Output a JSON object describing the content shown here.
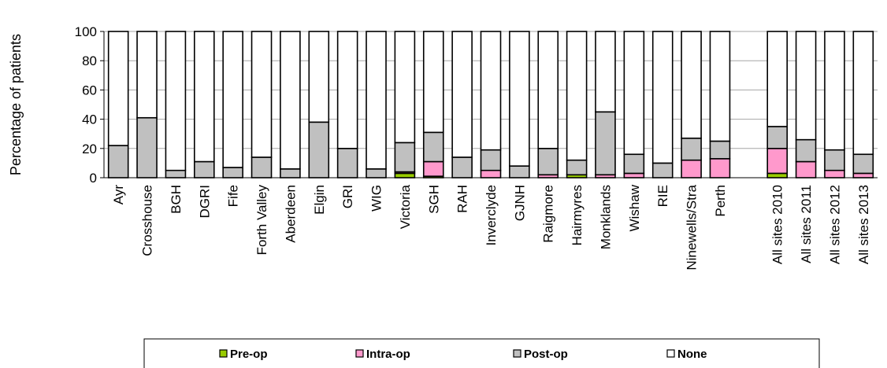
{
  "chart_data": {
    "type": "bar",
    "stacked": true,
    "ylabel": "Percentage of patients",
    "xlabel": "",
    "ylim": [
      0,
      100
    ],
    "yticks": [
      0,
      20,
      40,
      60,
      80,
      100
    ],
    "grid": true,
    "legend_position": "bottom",
    "categories": [
      "Ayr",
      "Crosshouse",
      "BGH",
      "DGRI",
      "Fife",
      "Forth Valley",
      "Aberdeen",
      "Elgin",
      "GRI",
      "WIG",
      "Victoria",
      "SGH",
      "RAH",
      "Inverclyde",
      "GJNH",
      "Raigmore",
      "Hairmyres",
      "Monklands",
      "Wishaw",
      "RIE",
      "Ninewells/Stra",
      "Perth",
      "",
      "All sites 2010",
      "All sites 2011",
      "All sites 2012",
      "All sites 2013"
    ],
    "series": [
      {
        "name": "Pre-op",
        "color": "#99cc00",
        "values": [
          0,
          0,
          0,
          0,
          0,
          0,
          0,
          0,
          0,
          0,
          3,
          1,
          0,
          0,
          0,
          0,
          2,
          0,
          0,
          0,
          0,
          0,
          0,
          3,
          0,
          0,
          0
        ]
      },
      {
        "name": "Intra-op",
        "color": "#ff99cc",
        "values": [
          0,
          0,
          0,
          0,
          0,
          0,
          0,
          0,
          0,
          0,
          1,
          10,
          0,
          5,
          0,
          2,
          0,
          2,
          3,
          0,
          12,
          13,
          0,
          17,
          11,
          5,
          3
        ]
      },
      {
        "name": "Post-op",
        "color": "#c0c0c0",
        "values": [
          22,
          41,
          5,
          11,
          7,
          14,
          6,
          38,
          20,
          6,
          20,
          20,
          14,
          14,
          8,
          18,
          10,
          43,
          13,
          10,
          15,
          12,
          0,
          15,
          15,
          14,
          13
        ]
      },
      {
        "name": "None",
        "color": "#ffffff",
        "values": [
          78,
          59,
          95,
          89,
          93,
          86,
          94,
          62,
          80,
          94,
          76,
          69,
          86,
          81,
          92,
          80,
          88,
          55,
          84,
          90,
          73,
          75,
          0,
          65,
          74,
          81,
          84
        ]
      }
    ]
  }
}
